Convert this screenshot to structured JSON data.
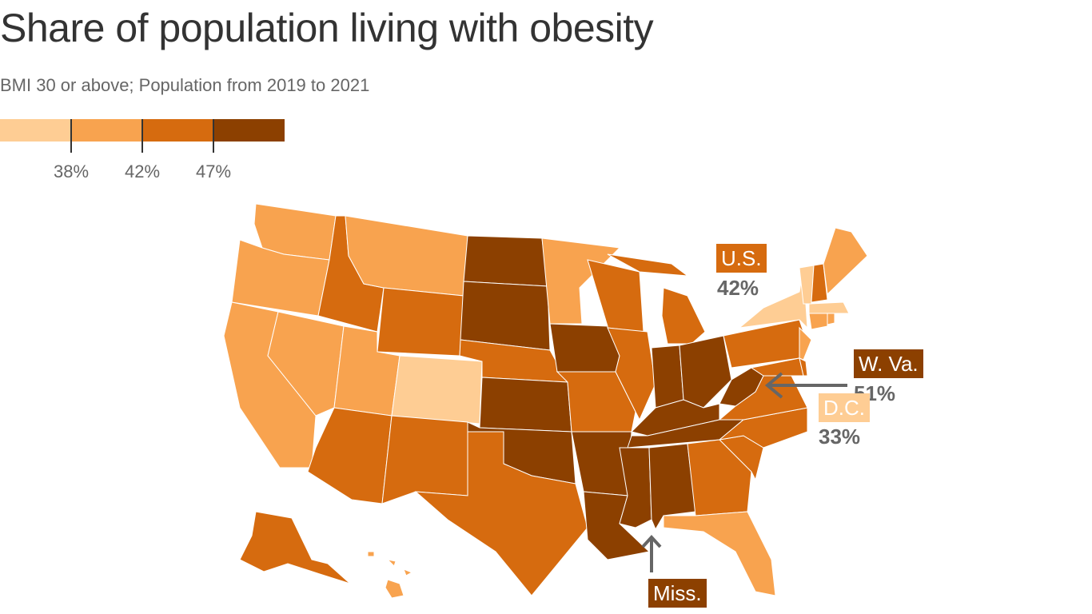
{
  "title": "Share of population living with obesity",
  "subtitle": "BMI 30 or above; Population from 2019 to 2021",
  "legend": {
    "colors": [
      "#fecd94",
      "#f8a34f",
      "#d66b0f",
      "#8c4000"
    ],
    "breaks": [
      "38%",
      "42%",
      "47%"
    ]
  },
  "annotations": {
    "us": {
      "label": "U.S.",
      "value": "42%",
      "color": "#d66b0f"
    },
    "wva": {
      "label": "W. Va.",
      "value": "51%",
      "color": "#8c4000"
    },
    "dc": {
      "label": "D.C.",
      "value": "33%",
      "color": "#fecd94"
    },
    "miss": {
      "label": "Miss.",
      "color": "#8c4000"
    }
  },
  "state_bins": {
    "WA": 1,
    "OR": 1,
    "CA": 1,
    "NV": 1,
    "ID": 2,
    "MT": 1,
    "WY": 2,
    "UT": 1,
    "CO": 0,
    "AZ": 2,
    "NM": 2,
    "ND": 3,
    "SD": 3,
    "NE": 2,
    "KS": 3,
    "OK": 3,
    "TX": 2,
    "MN": 1,
    "IA": 3,
    "MO": 2,
    "AR": 3,
    "LA": 3,
    "WI": 2,
    "MI": 2,
    "IL": 2,
    "IN": 3,
    "OH": 3,
    "KY": 3,
    "TN": 3,
    "MS": 3,
    "AL": 3,
    "GA": 2,
    "FL": 1,
    "SC": 2,
    "NC": 2,
    "VA": 2,
    "WV": 3,
    "PA": 2,
    "NY": 0,
    "NJ": 1,
    "MD": 2,
    "DE": 2,
    "CT": 1,
    "RI": 1,
    "MA": 0,
    "VT": 0,
    "NH": 2,
    "ME": 1,
    "AK": 2,
    "HI": 1
  }
}
